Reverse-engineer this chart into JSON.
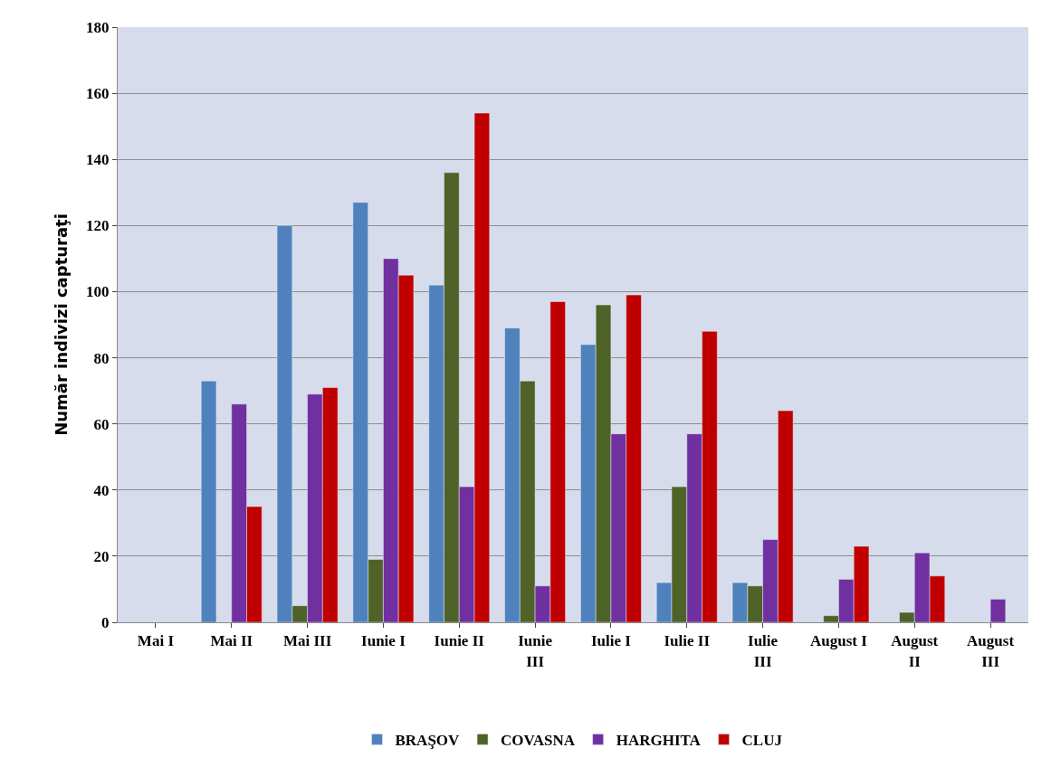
{
  "chart_data": {
    "type": "bar",
    "categories": [
      "Mai I",
      "Mai II",
      "Mai III",
      "Iunie I",
      "Iunie II",
      "Iunie III",
      "Iulie I",
      "Iulie II",
      "Iulie III",
      "August I",
      "August II",
      "August III"
    ],
    "series": [
      {
        "name": "BRAŞOV",
        "color": "#4f81bd",
        "values": [
          null,
          73,
          120,
          127,
          102,
          89,
          84,
          12,
          12,
          null,
          null,
          null
        ]
      },
      {
        "name": "COVASNA",
        "color": "#4f6228",
        "values": [
          null,
          null,
          5,
          19,
          136,
          73,
          96,
          41,
          11,
          2,
          3,
          null
        ]
      },
      {
        "name": "HARGHITA",
        "color": "#7030a0",
        "values": [
          null,
          66,
          69,
          110,
          41,
          11,
          57,
          57,
          25,
          13,
          21,
          7
        ]
      },
      {
        "name": "CLUJ",
        "color": "#c00000",
        "values": [
          null,
          35,
          71,
          105,
          154,
          97,
          99,
          88,
          64,
          23,
          14,
          null
        ]
      }
    ],
    "ylabel": "Număr indivizi capturaţi",
    "ylim": [
      0,
      180
    ],
    "yticks": [
      0,
      20,
      40,
      60,
      80,
      100,
      120,
      140,
      160,
      180
    ],
    "grid": "y",
    "legend": "bottom"
  }
}
